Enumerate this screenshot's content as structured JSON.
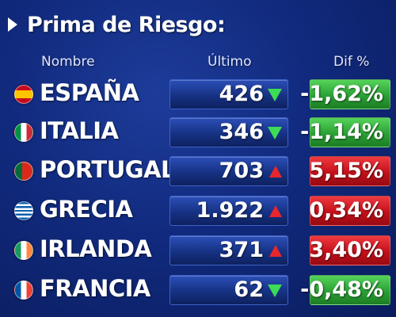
{
  "title": "Prima de Riesgo:",
  "columns": {
    "name": "Nombre",
    "last": "Último",
    "dif": "Dif %"
  },
  "colors": {
    "up": "#e8262c",
    "down": "#3ddc55",
    "positive_box": "#c5101a",
    "negative_box": "#2ba135"
  },
  "rows": [
    {
      "flag": "spain-flag-icon",
      "name": "ESPAÑA",
      "last": "426",
      "trend": "down",
      "dif": "-1,62%"
    },
    {
      "flag": "italy-flag-icon",
      "name": "ITALIA",
      "last": "346",
      "trend": "down",
      "dif": "-1,14%"
    },
    {
      "flag": "portugal-flag-icon",
      "name": "PORTUGAL",
      "last": "703",
      "trend": "up",
      "dif": "5,15%"
    },
    {
      "flag": "greece-flag-icon",
      "name": "GRECIA",
      "last": "1.922",
      "trend": "up",
      "dif": "0,34%"
    },
    {
      "flag": "ireland-flag-icon",
      "name": "IRLANDA",
      "last": "371",
      "trend": "up",
      "dif": "3,40%"
    },
    {
      "flag": "france-flag-icon",
      "name": "FRANCIA",
      "last": "62",
      "trend": "down",
      "dif": "-0,48%"
    }
  ]
}
